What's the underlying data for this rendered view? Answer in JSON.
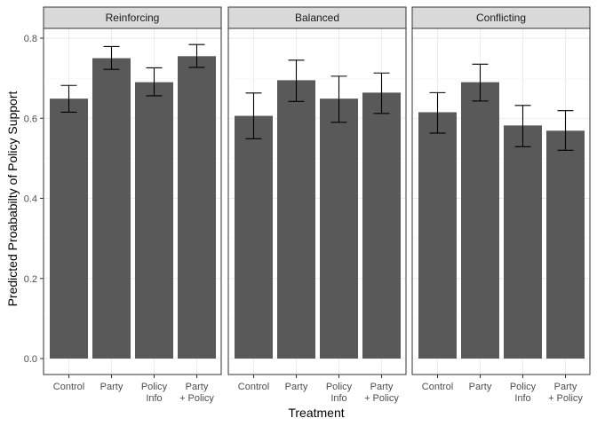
{
  "chart_data": {
    "type": "bar",
    "xlabel": "Treatment",
    "ylabel": "Predicted Proababilty of Policy Support",
    "ylim": [
      0,
      0.84
    ],
    "yticks": [
      "0.0",
      "0.2",
      "0.4",
      "0.6",
      "0.8"
    ],
    "categories": [
      [
        "Control"
      ],
      [
        "Party"
      ],
      [
        "Policy",
        "Info"
      ],
      [
        "Party",
        "+ Policy"
      ]
    ],
    "grid": true,
    "bar_color": "#595959",
    "panels": [
      {
        "name": "Reinforcing",
        "values": [
          0.649,
          0.75,
          0.69,
          0.755
        ],
        "error_low": [
          0.615,
          0.722,
          0.656,
          0.727
        ],
        "error_high": [
          0.682,
          0.779,
          0.726,
          0.784
        ]
      },
      {
        "name": "Balanced",
        "values": [
          0.606,
          0.695,
          0.649,
          0.664
        ],
        "error_low": [
          0.549,
          0.642,
          0.59,
          0.612
        ],
        "error_high": [
          0.663,
          0.745,
          0.705,
          0.713
        ]
      },
      {
        "name": "Conflicting",
        "values": [
          0.615,
          0.69,
          0.582,
          0.569
        ],
        "error_low": [
          0.563,
          0.643,
          0.529,
          0.52
        ],
        "error_high": [
          0.664,
          0.735,
          0.632,
          0.619
        ]
      }
    ]
  }
}
